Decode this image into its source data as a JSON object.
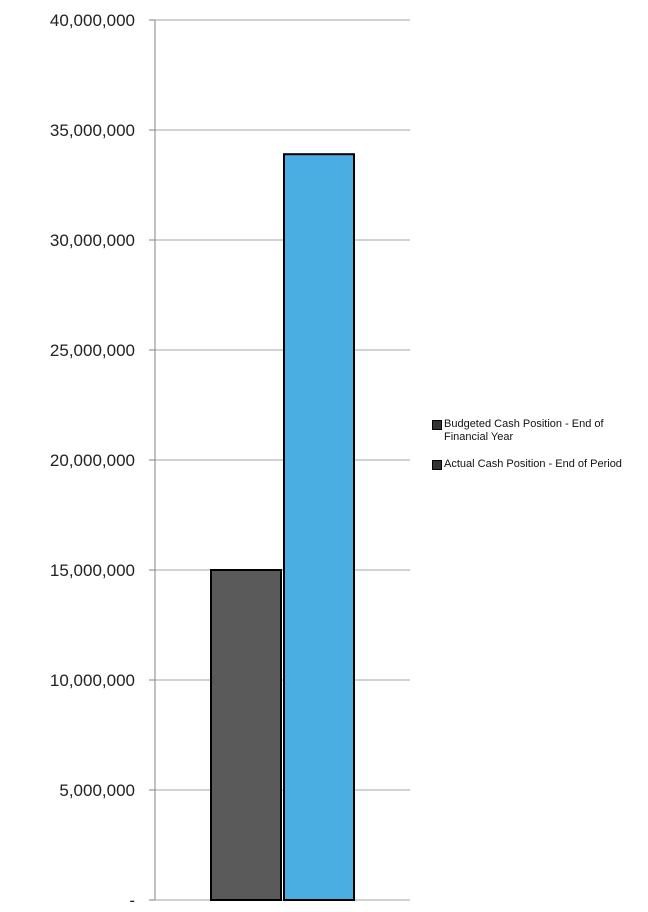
{
  "chart_data": {
    "type": "bar",
    "categories": [
      ""
    ],
    "series": [
      {
        "name": "Budgeted Cash Position - End of Financial Year",
        "values": [
          15000000
        ],
        "color": "#5a5a5a"
      },
      {
        "name": "Actual Cash Position - End of Period",
        "values": [
          33900000
        ],
        "color": "#4baee3"
      }
    ],
    "title": "",
    "xlabel": "",
    "ylabel": "",
    "ylim": [
      0,
      40000000
    ],
    "yticks": [
      0,
      5000000,
      10000000,
      15000000,
      20000000,
      25000000,
      30000000,
      35000000,
      40000000
    ],
    "ytick_labels": [
      "-",
      "5,000,000",
      "10,000,000",
      "15,000,000",
      "20,000,000",
      "25,000,000",
      "30,000,000",
      "35,000,000",
      "40,000,000"
    ],
    "grid": true,
    "legend_position": "right"
  }
}
